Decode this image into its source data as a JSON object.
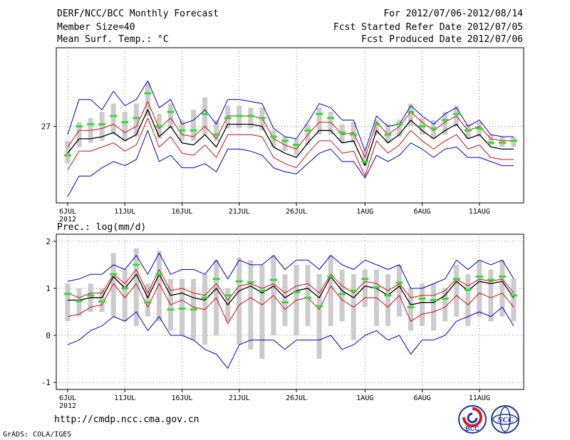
{
  "header": {
    "title": "DERF/NCC/BCC Monthly Forecast",
    "member_size": "Member Size=40",
    "variable": "Mean Surf. Temp.: °C",
    "period": "For 2012/07/06-2012/08/14",
    "started": "Fcst Started Refer Date 2012/07/05",
    "produced": "Fcst Produced Date 2012/07/06"
  },
  "footer": {
    "url": "http://cmdp.ncc.cma.gov.cn",
    "grads": "GrADS: COLA/IGES",
    "logo1_text": "BCC",
    "logo2_text": "NCC"
  },
  "colors": {
    "mean": "#000000",
    "inner": "#d01010",
    "outer": "#0000cc",
    "bar": "#cccccc",
    "obs": "#33dd33",
    "grid": "#666666"
  },
  "chart_data": [
    {
      "type": "line",
      "title": "Mean Surf. Temp.: °C",
      "x_tick_labels": [
        "6JUL",
        "11JUL",
        "16JUL",
        "21JUL",
        "26JUL",
        "1AUG",
        "6AUG",
        "11AUG"
      ],
      "x_tick_days": [
        0,
        5,
        10,
        15,
        20,
        26,
        31,
        36
      ],
      "year_label": "2012",
      "y_ticks": [
        27
      ],
      "ylim": [
        23.3,
        30.8
      ],
      "x": [
        0,
        1,
        2,
        3,
        4,
        5,
        6,
        7,
        8,
        9,
        10,
        11,
        12,
        13,
        14,
        15,
        16,
        17,
        18,
        19,
        20,
        21,
        22,
        23,
        24,
        25,
        26,
        27,
        28,
        29,
        30,
        31,
        32,
        33,
        34,
        35,
        36,
        37,
        38,
        39
      ],
      "series": [
        {
          "name": "ensemble mean",
          "values": [
            25.7,
            26.4,
            26.4,
            26.5,
            26.7,
            26.3,
            26.6,
            27.8,
            26.5,
            27.0,
            26.2,
            26.1,
            26.6,
            26.0,
            27.1,
            27.1,
            27.1,
            27.0,
            26.0,
            25.7,
            25.5,
            26.2,
            26.8,
            26.8,
            26.2,
            26.3,
            25.1,
            26.8,
            26.2,
            26.6,
            27.3,
            26.8,
            26.4,
            26.8,
            27.1,
            26.4,
            26.6,
            26.0,
            25.9,
            25.9
          ]
        },
        {
          "name": "inner band high",
          "values": [
            26.0,
            26.8,
            26.8,
            26.9,
            27.1,
            26.7,
            27.0,
            28.2,
            26.9,
            27.4,
            26.6,
            26.5,
            27.0,
            26.4,
            27.5,
            27.5,
            27.5,
            27.4,
            26.4,
            26.1,
            25.9,
            26.6,
            27.2,
            27.2,
            26.6,
            26.7,
            25.5,
            27.2,
            26.6,
            27.0,
            27.7,
            27.2,
            26.8,
            27.2,
            27.5,
            26.8,
            27.0,
            26.4,
            26.3,
            26.3
          ]
        },
        {
          "name": "inner band low",
          "values": [
            24.9,
            25.8,
            25.8,
            26.0,
            26.2,
            25.8,
            26.1,
            27.4,
            26.0,
            26.5,
            25.7,
            25.6,
            26.1,
            25.5,
            26.6,
            26.6,
            26.6,
            26.5,
            25.5,
            25.2,
            25.0,
            25.7,
            26.3,
            26.3,
            25.7,
            25.8,
            24.6,
            26.3,
            25.7,
            26.1,
            26.8,
            26.3,
            25.9,
            26.3,
            26.6,
            25.9,
            26.1,
            25.5,
            25.4,
            25.4
          ]
        },
        {
          "name": "outer band high",
          "values": [
            26.6,
            28.3,
            28.3,
            27.8,
            28.7,
            28.0,
            28.3,
            29.2,
            27.9,
            28.3,
            27.1,
            27.3,
            27.8,
            27.1,
            28.3,
            28.3,
            28.2,
            28.1,
            26.9,
            26.5,
            26.4,
            27.2,
            28.1,
            27.9,
            27.3,
            27.3,
            25.8,
            27.5,
            27.0,
            27.1,
            28.0,
            27.5,
            27.1,
            27.6,
            27.9,
            27.0,
            27.3,
            26.6,
            26.5,
            26.5
          ]
        },
        {
          "name": "outer band low",
          "values": [
            23.6,
            24.6,
            24.6,
            25.0,
            25.3,
            25.1,
            25.4,
            26.8,
            25.3,
            25.6,
            25.0,
            25.0,
            25.2,
            24.8,
            25.9,
            25.9,
            25.8,
            25.6,
            25.0,
            24.8,
            24.7,
            25.2,
            25.7,
            25.9,
            25.3,
            25.3,
            24.5,
            25.6,
            25.3,
            25.6,
            26.2,
            25.9,
            25.5,
            25.9,
            26.0,
            25.5,
            25.5,
            25.3,
            25.1,
            25.1
          ]
        },
        {
          "name": "observed",
          "values": [
            25.6,
            27.0,
            27.1,
            27.1,
            27.5,
            27.2,
            27.4,
            28.6,
            27.0,
            27.7,
            26.8,
            26.8,
            27.6,
            26.6,
            27.4,
            27.5,
            27.5,
            27.4,
            26.5,
            26.3,
            26.1,
            26.8,
            27.6,
            27.4,
            26.7,
            26.6,
            25.3,
            27.1,
            26.6,
            27.1,
            27.7,
            27.0,
            26.9,
            27.3,
            27.6,
            26.8,
            26.9,
            26.2,
            26.2,
            26.3
          ]
        }
      ],
      "bars": {
        "name": "member range",
        "low": [
          25.2,
          26.0,
          26.2,
          26.3,
          26.6,
          26.3,
          26.5,
          27.5,
          26.4,
          26.9,
          26.3,
          26.3,
          26.6,
          26.3,
          26.9,
          26.9,
          26.9,
          26.8,
          26.0,
          25.8,
          25.6,
          26.1,
          26.6,
          26.6,
          26.2,
          26.2,
          25.1,
          26.6,
          26.2,
          26.5,
          27.0,
          26.6,
          26.4,
          26.6,
          27.0,
          26.4,
          26.5,
          26.1,
          26.0,
          26.0
        ],
        "high": [
          26.3,
          27.2,
          27.4,
          27.7,
          28.1,
          27.7,
          28.1,
          29.1,
          27.6,
          28.1,
          27.3,
          27.8,
          28.4,
          27.3,
          28.0,
          28.0,
          27.9,
          27.9,
          26.8,
          26.5,
          26.4,
          27.1,
          27.9,
          27.7,
          27.1,
          27.2,
          25.8,
          27.3,
          27.1,
          27.3,
          28.1,
          27.4,
          27.3,
          27.7,
          28.0,
          27.1,
          27.2,
          26.6,
          26.5,
          26.5
        ]
      }
    },
    {
      "type": "line",
      "title": "Prec.: log(mm/d)",
      "x_tick_labels": [
        "6JUL",
        "11JUL",
        "16JUL",
        "21JUL",
        "26JUL",
        "1AUG",
        "6AUG",
        "11AUG"
      ],
      "x_tick_days": [
        0,
        5,
        10,
        15,
        20,
        26,
        31,
        36
      ],
      "year_label": "2012",
      "y_ticks": [
        -1,
        0,
        1,
        2
      ],
      "ylim": [
        -1.15,
        2.15
      ],
      "x": [
        0,
        1,
        2,
        3,
        4,
        5,
        6,
        7,
        8,
        9,
        10,
        11,
        12,
        13,
        14,
        15,
        16,
        17,
        18,
        19,
        20,
        21,
        22,
        23,
        24,
        25,
        26,
        27,
        28,
        29,
        30,
        31,
        32,
        33,
        34,
        35,
        36,
        37,
        38,
        39
      ],
      "series": [
        {
          "name": "ensemble mean",
          "values": [
            0.75,
            0.75,
            0.8,
            0.8,
            1.25,
            1.0,
            1.3,
            0.8,
            1.3,
            0.85,
            0.9,
            0.8,
            0.75,
            1.0,
            0.65,
            0.95,
            1.05,
            0.9,
            1.05,
            0.8,
            0.95,
            1.0,
            0.8,
            1.25,
            0.95,
            0.8,
            1.05,
            1.0,
            0.85,
            1.05,
            0.65,
            0.7,
            0.7,
            0.85,
            1.15,
            0.95,
            1.15,
            1.1,
            1.15,
            0.8
          ]
        },
        {
          "name": "inner band high",
          "values": [
            0.9,
            0.8,
            0.9,
            0.9,
            1.3,
            1.1,
            1.4,
            0.9,
            1.4,
            0.95,
            1.0,
            0.9,
            0.85,
            1.1,
            0.75,
            1.05,
            1.1,
            1.0,
            1.1,
            0.9,
            1.05,
            1.1,
            0.9,
            1.3,
            1.05,
            0.9,
            1.15,
            1.1,
            0.95,
            1.1,
            0.8,
            0.85,
            0.85,
            0.95,
            1.2,
            1.05,
            1.2,
            1.15,
            1.2,
            0.9
          ]
        },
        {
          "name": "inner band low",
          "values": [
            0.4,
            0.45,
            0.6,
            0.65,
            1.1,
            0.8,
            1.1,
            0.6,
            1.1,
            0.65,
            0.75,
            0.6,
            0.55,
            0.8,
            0.25,
            0.65,
            0.8,
            0.65,
            0.85,
            0.55,
            0.75,
            0.8,
            0.55,
            1.05,
            0.75,
            0.6,
            0.8,
            0.8,
            0.6,
            0.85,
            0.3,
            0.45,
            0.5,
            0.6,
            0.85,
            0.65,
            0.9,
            0.8,
            0.9,
            0.6
          ]
        },
        {
          "name": "outer band high",
          "values": [
            1.15,
            1.2,
            1.3,
            1.3,
            1.5,
            1.4,
            1.7,
            1.3,
            1.75,
            1.3,
            1.4,
            1.4,
            1.3,
            1.6,
            1.2,
            1.6,
            1.5,
            1.5,
            1.7,
            1.4,
            1.6,
            1.6,
            1.4,
            1.7,
            1.5,
            1.4,
            1.6,
            1.5,
            1.4,
            1.5,
            1.0,
            1.0,
            1.1,
            1.2,
            1.6,
            1.4,
            1.6,
            1.5,
            1.6,
            1.2
          ]
        },
        {
          "name": "outer band low",
          "values": [
            -0.2,
            -0.1,
            0.1,
            0.2,
            0.4,
            0.3,
            0.5,
            0.1,
            0.4,
            0.0,
            0.0,
            -0.1,
            -0.3,
            -0.4,
            -0.7,
            -0.2,
            -0.1,
            -0.1,
            -0.1,
            -0.3,
            -0.1,
            -0.1,
            -0.1,
            0.0,
            -0.3,
            -0.2,
            0.0,
            0.1,
            -0.1,
            0.0,
            -0.4,
            -0.1,
            -0.1,
            0.0,
            0.3,
            0.4,
            0.5,
            0.4,
            0.6,
            0.2
          ]
        },
        {
          "name": "observed",
          "values": [
            0.88,
            0.73,
            0.85,
            0.72,
            1.3,
            1.0,
            1.5,
            0.7,
            1.3,
            0.55,
            0.57,
            0.55,
            0.8,
            1.2,
            0.85,
            1.15,
            1.13,
            0.95,
            1.18,
            0.7,
            0.92,
            0.8,
            0.62,
            1.25,
            0.88,
            0.95,
            1.2,
            1.02,
            0.85,
            1.12,
            0.6,
            0.78,
            0.75,
            0.78,
            1.2,
            0.97,
            1.25,
            1.18,
            1.25,
            0.85
          ]
        }
      ],
      "bars": {
        "name": "member range",
        "low": [
          0.3,
          0.4,
          0.5,
          0.5,
          0.4,
          0.3,
          0.2,
          0.4,
          0.3,
          0.1,
          0.0,
          -0.1,
          -0.2,
          0.0,
          0.3,
          -0.2,
          -0.3,
          -0.5,
          0.0,
          0.2,
          0.0,
          0.2,
          -0.5,
          0.2,
          0.3,
          -0.1,
          0.6,
          0.2,
          0.2,
          0.4,
          0.1,
          0.2,
          0.1,
          0.3,
          0.4,
          0.2,
          0.4,
          0.3,
          0.4,
          0.3
        ],
        "high": [
          1.1,
          1.0,
          1.1,
          1.0,
          1.75,
          1.4,
          1.85,
          1.1,
          1.8,
          1.2,
          1.2,
          1.2,
          1.3,
          1.6,
          1.0,
          1.65,
          1.6,
          1.5,
          1.7,
          1.3,
          1.5,
          1.5,
          1.3,
          1.7,
          1.4,
          1.3,
          1.4,
          1.4,
          1.3,
          1.5,
          1.0,
          1.1,
          1.1,
          1.0,
          1.5,
          1.3,
          1.6,
          1.4,
          1.6,
          1.2
        ]
      }
    }
  ]
}
